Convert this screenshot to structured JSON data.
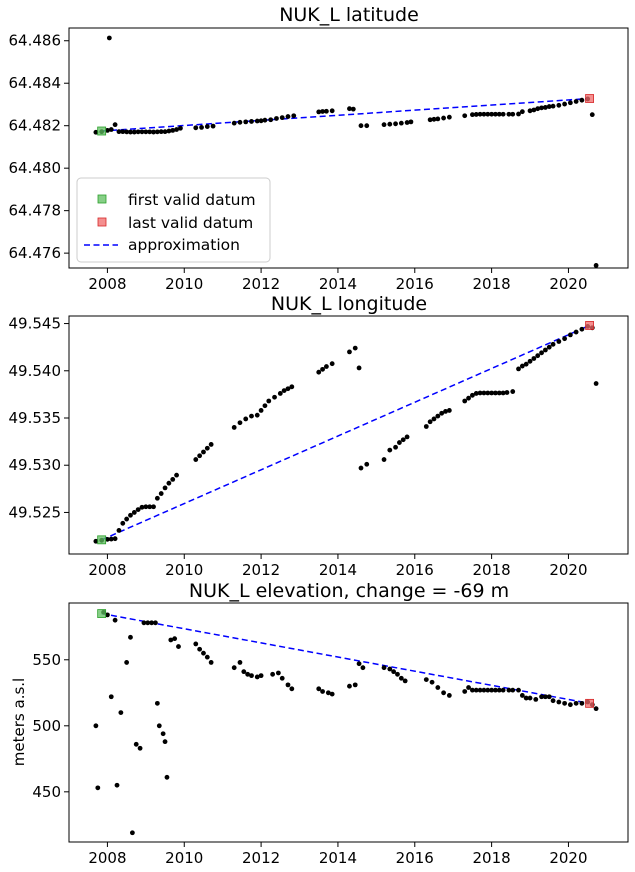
{
  "chart_data": [
    {
      "type": "scatter",
      "title": "NUK_L latitude",
      "xlabel": "",
      "ylabel": "",
      "xlim": [
        2007.0,
        2021.55
      ],
      "ylim": [
        64.4753,
        64.4866
      ],
      "xticks": [
        2008,
        2010,
        2012,
        2014,
        2016,
        2018,
        2020
      ],
      "xtick_labels": [
        "2008",
        "2010",
        "2012",
        "2014",
        "2016",
        "2018",
        "2020"
      ],
      "yticks": [
        64.476,
        64.478,
        64.48,
        64.482,
        64.484,
        64.486
      ],
      "ytick_labels": [
        "64.476",
        "64.478",
        "64.480",
        "64.482",
        "64.484",
        "64.486"
      ],
      "legend": {
        "placement": "lower-left",
        "entries": [
          {
            "label": "first valid datum",
            "kind": "square",
            "color": "#5fbf5f"
          },
          {
            "label": "last valid datum",
            "kind": "square",
            "color": "#f06a6a"
          },
          {
            "label": "approximation",
            "kind": "dashed-line",
            "color": "#0000ff"
          }
        ]
      },
      "series": [
        {
          "x": [
            2007.7,
            2007.85,
            2008.0,
            2008.05,
            2008.1,
            2008.2,
            2008.3,
            2008.4,
            2008.5,
            2008.6,
            2008.7,
            2008.8,
            2008.9,
            2009.0,
            2009.1,
            2009.2,
            2009.3,
            2009.4,
            2009.5,
            2009.6,
            2009.7,
            2009.8,
            2009.9,
            2010.3,
            2010.45,
            2010.6,
            2010.75,
            2011.3,
            2011.45,
            2011.6,
            2011.75,
            2011.9,
            2012.0,
            2012.1,
            2012.25,
            2012.4,
            2012.55,
            2012.7,
            2012.85,
            2013.5,
            2013.6,
            2013.7,
            2013.85,
            2014.3,
            2014.4,
            2014.6,
            2014.75,
            2015.2,
            2015.35,
            2015.5,
            2015.65,
            2015.8,
            2015.9,
            2016.4,
            2016.5,
            2016.6,
            2016.75,
            2016.9,
            2017.3,
            2017.5,
            2017.6,
            2017.7,
            2017.8,
            2017.9,
            2018.0,
            2018.1,
            2018.2,
            2018.3,
            2018.45,
            2018.55,
            2018.7,
            2018.8,
            2019.0,
            2019.1,
            2019.2,
            2019.3,
            2019.4,
            2019.5,
            2019.6,
            2019.75,
            2019.9,
            2020.05,
            2020.2,
            2020.35,
            2020.5,
            2020.62,
            2020.72
          ],
          "y": [
            64.48169,
            64.48172,
            64.48178,
            64.48613,
            64.48182,
            64.48205,
            64.48172,
            64.48172,
            64.48171,
            64.4817,
            64.4817,
            64.48171,
            64.48171,
            64.48171,
            64.48171,
            64.4817,
            64.48171,
            64.48172,
            64.48172,
            64.48175,
            64.48178,
            64.48182,
            64.48188,
            64.4819,
            64.48192,
            64.48196,
            64.48198,
            64.48212,
            64.48216,
            64.48218,
            64.4822,
            64.48222,
            64.48223,
            64.48226,
            64.48228,
            64.48234,
            64.48238,
            64.48243,
            64.48247,
            64.48265,
            64.48267,
            64.48268,
            64.4827,
            64.4828,
            64.48278,
            64.482,
            64.482,
            64.48205,
            64.48207,
            64.48209,
            64.48212,
            64.48215,
            64.48218,
            64.48228,
            64.4823,
            64.48232,
            64.48236,
            64.4824,
            64.48247,
            64.48252,
            64.48253,
            64.48254,
            64.48254,
            64.48254,
            64.48254,
            64.48254,
            64.48254,
            64.48254,
            64.48254,
            64.48254,
            64.48255,
            64.48266,
            64.4827,
            64.48274,
            64.4828,
            64.48284,
            64.48286,
            64.4829,
            64.48292,
            64.48296,
            64.48302,
            64.48308,
            64.48314,
            64.4832,
            64.48326,
            64.48252,
            64.47542
          ]
        }
      ],
      "first_valid": {
        "x": 2007.85,
        "y": 64.48175
      },
      "last_valid": {
        "x": 2020.55,
        "y": 64.48328
      },
      "approximation": {
        "x": [
          2007.85,
          2020.55
        ],
        "y": [
          64.48175,
          64.48328
        ]
      }
    },
    {
      "type": "scatter",
      "title": "NUK_L longitude",
      "xlabel": "",
      "ylabel": "",
      "xlim": [
        2007.0,
        2021.55
      ],
      "ylim": [
        49.5206,
        49.5458
      ],
      "xticks": [
        2008,
        2010,
        2012,
        2014,
        2016,
        2018,
        2020
      ],
      "xtick_labels": [
        "2008",
        "2010",
        "2012",
        "2014",
        "2016",
        "2018",
        "2020"
      ],
      "yticks": [
        49.525,
        49.53,
        49.535,
        49.54,
        49.545
      ],
      "ytick_labels": [
        "49.525",
        "49.530",
        "49.535",
        "49.540",
        "49.545"
      ],
      "series": [
        {
          "x": [
            2007.7,
            2007.85,
            2008.0,
            2008.1,
            2008.2,
            2008.3,
            2008.4,
            2008.5,
            2008.6,
            2008.7,
            2008.8,
            2008.9,
            2009.0,
            2009.1,
            2009.2,
            2009.3,
            2009.4,
            2009.5,
            2009.6,
            2009.7,
            2009.8,
            2010.3,
            2010.4,
            2010.5,
            2010.6,
            2010.7,
            2011.3,
            2011.45,
            2011.6,
            2011.75,
            2011.9,
            2012.0,
            2012.1,
            2012.2,
            2012.35,
            2012.5,
            2012.6,
            2012.7,
            2012.8,
            2013.5,
            2013.6,
            2013.7,
            2013.85,
            2014.3,
            2014.45,
            2014.55,
            2014.6,
            2014.75,
            2015.2,
            2015.35,
            2015.5,
            2015.6,
            2015.7,
            2015.8,
            2016.3,
            2016.4,
            2016.5,
            2016.6,
            2016.7,
            2016.8,
            2016.9,
            2017.3,
            2017.4,
            2017.5,
            2017.6,
            2017.7,
            2017.8,
            2017.9,
            2018.0,
            2018.1,
            2018.2,
            2018.3,
            2018.4,
            2018.55,
            2018.7,
            2018.8,
            2018.9,
            2019.0,
            2019.1,
            2019.2,
            2019.3,
            2019.4,
            2019.5,
            2019.6,
            2019.75,
            2019.9,
            2020.05,
            2020.2,
            2020.35,
            2020.5,
            2020.62,
            2020.72
          ],
          "y": [
            49.52195,
            49.52205,
            49.52215,
            49.52218,
            49.52222,
            49.5231,
            49.52385,
            49.5243,
            49.5247,
            49.525,
            49.5253,
            49.52555,
            49.5256,
            49.5256,
            49.5256,
            49.5265,
            49.527,
            49.5276,
            49.5281,
            49.5285,
            49.52895,
            49.5306,
            49.531,
            49.5314,
            49.5318,
            49.5322,
            49.534,
            49.5345,
            49.5349,
            49.5352,
            49.5353,
            49.5358,
            49.5363,
            49.5368,
            49.5372,
            49.5376,
            49.5379,
            49.5381,
            49.5383,
            49.53985,
            49.54015,
            49.54045,
            49.54075,
            49.542,
            49.5424,
            49.5403,
            49.5297,
            49.5301,
            49.5306,
            49.5316,
            49.5319,
            49.5324,
            49.5327,
            49.533,
            49.5341,
            49.5346,
            49.5349,
            49.5352,
            49.5355,
            49.5357,
            49.5358,
            49.5368,
            49.5371,
            49.5374,
            49.5376,
            49.53765,
            49.53765,
            49.53765,
            49.53765,
            49.53765,
            49.53765,
            49.53765,
            49.5377,
            49.5378,
            49.5402,
            49.5405,
            49.5407,
            49.541,
            49.5413,
            49.5416,
            49.5419,
            49.5422,
            49.5425,
            49.5428,
            49.5431,
            49.5434,
            49.5438,
            49.5441,
            49.5444,
            49.5447,
            49.54455,
            49.53865
          ]
        }
      ],
      "first_valid": {
        "x": 2007.85,
        "y": 49.5221
      },
      "last_valid": {
        "x": 2020.55,
        "y": 49.5448
      },
      "approximation": {
        "x": [
          2007.85,
          2020.55
        ],
        "y": [
          49.5221,
          49.5448
        ]
      }
    },
    {
      "type": "scatter",
      "title": "NUK_L elevation, change = -69 m",
      "xlabel": "",
      "ylabel": "meters a.s.l",
      "xlim": [
        2007.0,
        2021.55
      ],
      "ylim": [
        412,
        593
      ],
      "xticks": [
        2008,
        2010,
        2012,
        2014,
        2016,
        2018,
        2020
      ],
      "xtick_labels": [
        "2008",
        "2010",
        "2012",
        "2014",
        "2016",
        "2018",
        "2020"
      ],
      "yticks": [
        450,
        500,
        550
      ],
      "ytick_labels": [
        "450",
        "500",
        "550"
      ],
      "series": [
        {
          "x": [
            2007.7,
            2007.75,
            2007.9,
            2008.0,
            2008.1,
            2008.2,
            2008.25,
            2008.35,
            2008.5,
            2008.6,
            2008.65,
            2008.75,
            2008.85,
            2008.95,
            2009.05,
            2009.15,
            2009.25,
            2009.3,
            2009.35,
            2009.45,
            2009.5,
            2009.55,
            2009.65,
            2009.75,
            2009.85,
            2010.3,
            2010.4,
            2010.5,
            2010.6,
            2010.7,
            2011.3,
            2011.45,
            2011.55,
            2011.65,
            2011.75,
            2011.9,
            2012.0,
            2012.3,
            2012.45,
            2012.55,
            2012.7,
            2012.8,
            2013.5,
            2013.6,
            2013.75,
            2013.85,
            2014.3,
            2014.45,
            2014.55,
            2014.65,
            2015.2,
            2015.35,
            2015.45,
            2015.55,
            2015.65,
            2015.75,
            2016.3,
            2016.45,
            2016.6,
            2016.75,
            2016.9,
            2017.3,
            2017.4,
            2017.5,
            2017.6,
            2017.7,
            2017.8,
            2017.9,
            2018.0,
            2018.1,
            2018.2,
            2018.3,
            2018.45,
            2018.55,
            2018.7,
            2018.8,
            2018.9,
            2019.0,
            2019.15,
            2019.3,
            2019.4,
            2019.5,
            2019.6,
            2019.75,
            2019.9,
            2020.05,
            2020.2,
            2020.35,
            2020.5,
            2020.62,
            2020.72
          ],
          "y": [
            500,
            453,
            586,
            584,
            522,
            580,
            455,
            510,
            548,
            567,
            419,
            486,
            483,
            578,
            578,
            578,
            578,
            517,
            500,
            494,
            488,
            461,
            565,
            566,
            560,
            562,
            558,
            555,
            552,
            548,
            544,
            548,
            541,
            539,
            538,
            537,
            538,
            539,
            540,
            536,
            531,
            528,
            528,
            526,
            525,
            524,
            530,
            531,
            547,
            544,
            544,
            543,
            541,
            539,
            536,
            534,
            535,
            533,
            529,
            525,
            523,
            526,
            529,
            527,
            527,
            527,
            527,
            527,
            527,
            527,
            527,
            527,
            527,
            527,
            527,
            523,
            521,
            521,
            520,
            522,
            522,
            522,
            519,
            518,
            517,
            516,
            517,
            517,
            518,
            516,
            513
          ]
        }
      ],
      "first_valid": {
        "x": 2007.85,
        "y": 585
      },
      "last_valid": {
        "x": 2020.55,
        "y": 517
      },
      "approximation": {
        "x": [
          2007.85,
          2020.55
        ],
        "y": [
          585,
          517
        ]
      }
    }
  ]
}
